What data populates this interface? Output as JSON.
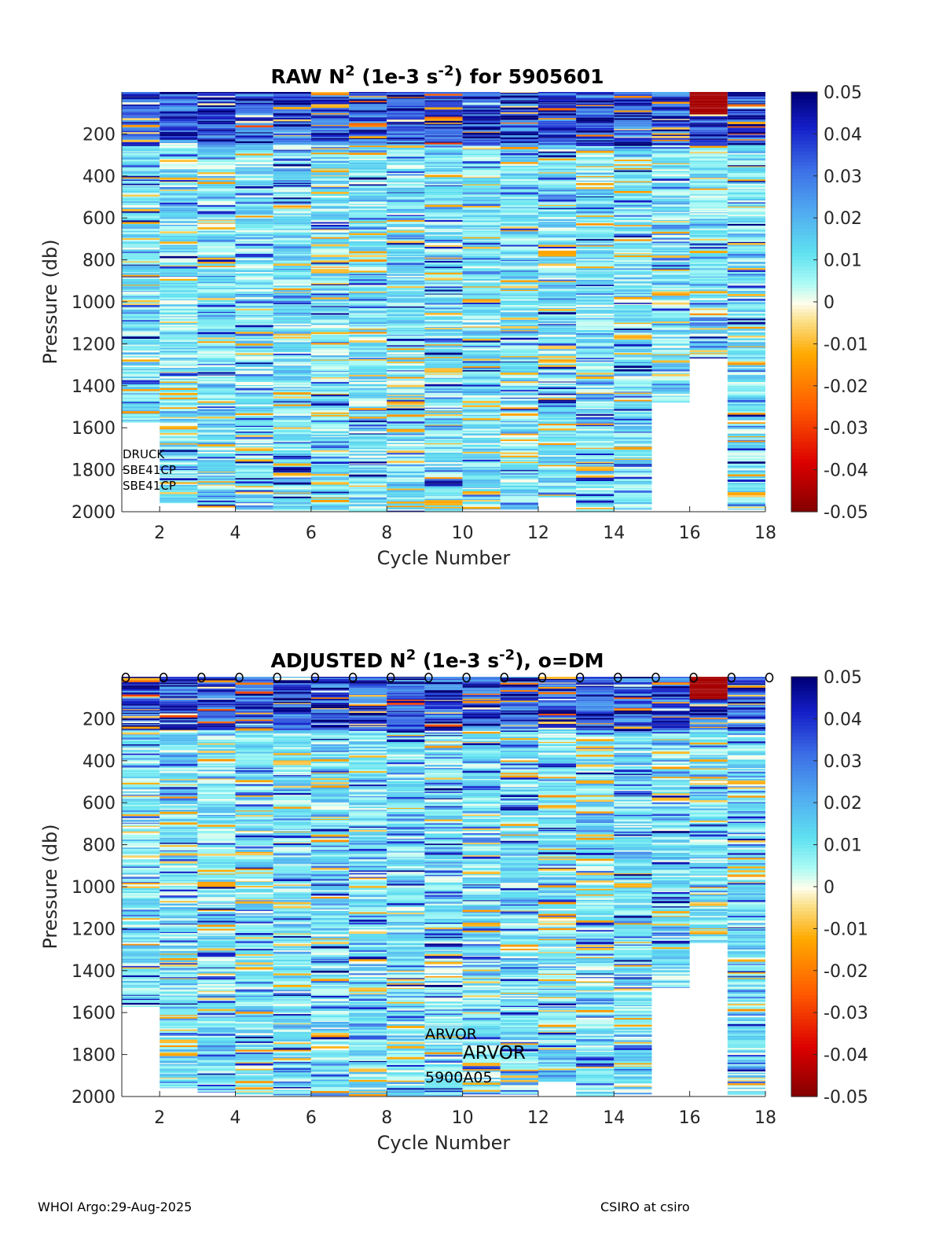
{
  "chart_data": [
    {
      "type": "heatmap",
      "title_prefix": "RAW N",
      "title_sup1": "2",
      "title_mid": " (1e-3 s",
      "title_sup2": "-2",
      "title_suffix": ") for 5905601",
      "xlabel": "Cycle Number",
      "ylabel": "Pressure (db)",
      "xlim": [
        1,
        18
      ],
      "ylim": [
        0,
        2000
      ],
      "x_ticks": [
        "2",
        "4",
        "6",
        "8",
        "10",
        "12",
        "14",
        "16",
        "18"
      ],
      "y_ticks": [
        "200",
        "400",
        "600",
        "800",
        "1000",
        "1200",
        "1400",
        "1600",
        "1800",
        "2000"
      ],
      "colorbar_ticks": [
        "0.05",
        "0.04",
        "0.03",
        "0.02",
        "0.01",
        "0",
        "-0.01",
        "-0.02",
        "-0.03",
        "-0.04",
        "-0.05"
      ],
      "clim": [
        -0.05,
        0.05
      ],
      "cycles": [
        1,
        2,
        3,
        4,
        5,
        6,
        7,
        8,
        9,
        10,
        11,
        12,
        13,
        14,
        15,
        16,
        17
      ],
      "profile_max_pressure": [
        1575,
        1960,
        1980,
        1990,
        1995,
        2000,
        2000,
        2000,
        2000,
        1990,
        1990,
        1930,
        2000,
        1990,
        1480,
        1270,
        1990
      ],
      "profile_min_pressure": [
        0,
        0,
        0,
        0,
        0,
        0,
        0,
        0,
        0,
        0,
        0,
        0,
        0,
        0,
        0,
        0,
        0
      ],
      "dm_markers": false,
      "annotations": [
        "DRUCK",
        "SBE41CP",
        "SBE41CP"
      ]
    },
    {
      "type": "heatmap",
      "title_prefix": "ADJUSTED N",
      "title_sup1": "2",
      "title_mid": " (1e-3 s",
      "title_sup2": "-2",
      "title_suffix": "), o=DM",
      "xlabel": "Cycle Number",
      "ylabel": "Pressure (db)",
      "xlim": [
        1,
        18
      ],
      "ylim": [
        0,
        2000
      ],
      "x_ticks": [
        "2",
        "4",
        "6",
        "8",
        "10",
        "12",
        "14",
        "16",
        "18"
      ],
      "y_ticks": [
        "200",
        "400",
        "600",
        "800",
        "1000",
        "1200",
        "1400",
        "1600",
        "1800",
        "2000"
      ],
      "colorbar_ticks": [
        "0.05",
        "0.04",
        "0.03",
        "0.02",
        "0.01",
        "0",
        "-0.01",
        "-0.02",
        "-0.03",
        "-0.04",
        "-0.05"
      ],
      "clim": [
        -0.05,
        0.05
      ],
      "cycles": [
        1,
        2,
        3,
        4,
        5,
        6,
        7,
        8,
        9,
        10,
        11,
        12,
        13,
        14,
        15,
        16,
        17
      ],
      "profile_max_pressure": [
        1575,
        1960,
        1980,
        1990,
        1995,
        2000,
        2000,
        2000,
        2000,
        1990,
        1990,
        1930,
        2000,
        1990,
        1480,
        1270,
        1990
      ],
      "profile_min_pressure": [
        0,
        0,
        0,
        0,
        0,
        0,
        0,
        0,
        0,
        0,
        0,
        0,
        0,
        0,
        0,
        0,
        0
      ],
      "dm_markers": true,
      "dm_cycles": [
        1,
        2,
        3,
        4,
        5,
        6,
        7,
        8,
        9,
        10,
        11,
        12,
        13,
        14,
        15,
        16,
        17,
        18
      ],
      "dm_marker_symbol": "o",
      "annotations": [
        "ARVOR",
        "ARVOR",
        "5900A05"
      ]
    }
  ],
  "footer": {
    "left": "WHOI Argo:29-Aug-2025",
    "right": "CSIRO at csiro"
  }
}
